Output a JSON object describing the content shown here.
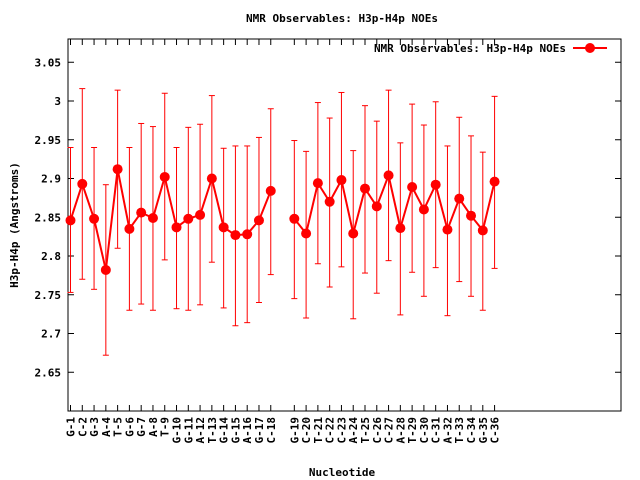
{
  "chart_data": {
    "type": "line",
    "title": "NMR Observables: H3p-H4p NOEs",
    "xlabel": "Nucleotide",
    "ylabel": "H3p-H4p (Angstroms)",
    "ylim": [
      2.6,
      3.08
    ],
    "yticks": [
      "2.65",
      "2.7",
      "2.75",
      "2.8",
      "2.85",
      "2.9",
      "2.95",
      "3",
      "3.05"
    ],
    "legend": {
      "position": "top-right",
      "label": "NMR Observables: H3p-H4p NOEs"
    },
    "grid": false,
    "error_bars": true,
    "categories": [
      "G-1",
      "C-2",
      "G-3",
      "A-4",
      "T-5",
      "G-6",
      "G-7",
      "A-8",
      "T-9",
      "G-10",
      "G-11",
      "A-12",
      "T-13",
      "G-14",
      "G-15",
      "A-16",
      "G-17",
      "C-18",
      "",
      "G-19",
      "C-20",
      "T-21",
      "C-22",
      "C-23",
      "A-24",
      "T-25",
      "C-26",
      "C-27",
      "A-28",
      "T-29",
      "C-30",
      "C-31",
      "A-32",
      "T-33",
      "C-34",
      "G-35",
      "C-36"
    ],
    "series": [
      {
        "name": "NMR Observables: H3p-H4p NOEs",
        "color": "#ff0000",
        "values": [
          2.846,
          2.893,
          2.848,
          2.782,
          2.912,
          2.835,
          2.856,
          2.849,
          2.902,
          2.837,
          2.848,
          2.853,
          2.9,
          2.837,
          2.827,
          2.828,
          2.846,
          2.884,
          null,
          2.848,
          2.829,
          2.894,
          2.87,
          2.898,
          2.829,
          2.887,
          2.864,
          2.904,
          2.836,
          2.889,
          2.86,
          2.892,
          2.834,
          2.874,
          2.852,
          2.833,
          2.896
        ],
        "error_low": [
          2.753,
          2.77,
          2.757,
          2.672,
          2.81,
          2.73,
          2.738,
          2.73,
          2.795,
          2.732,
          2.73,
          2.737,
          2.792,
          2.733,
          2.71,
          2.714,
          2.74,
          2.776,
          null,
          2.745,
          2.72,
          2.79,
          2.76,
          2.786,
          2.719,
          2.778,
          2.752,
          2.794,
          2.724,
          2.779,
          2.748,
          2.785,
          2.723,
          2.767,
          2.748,
          2.73,
          2.784
        ],
        "error_high": [
          2.94,
          3.016,
          2.94,
          2.892,
          3.014,
          2.94,
          2.971,
          2.967,
          3.01,
          2.94,
          2.966,
          2.97,
          3.007,
          2.939,
          2.942,
          2.942,
          2.953,
          2.99,
          null,
          2.949,
          2.935,
          2.998,
          2.978,
          3.011,
          2.936,
          2.994,
          2.974,
          3.014,
          2.946,
          2.996,
          2.969,
          2.999,
          2.942,
          2.979,
          2.955,
          2.934,
          3.006
        ]
      }
    ]
  }
}
